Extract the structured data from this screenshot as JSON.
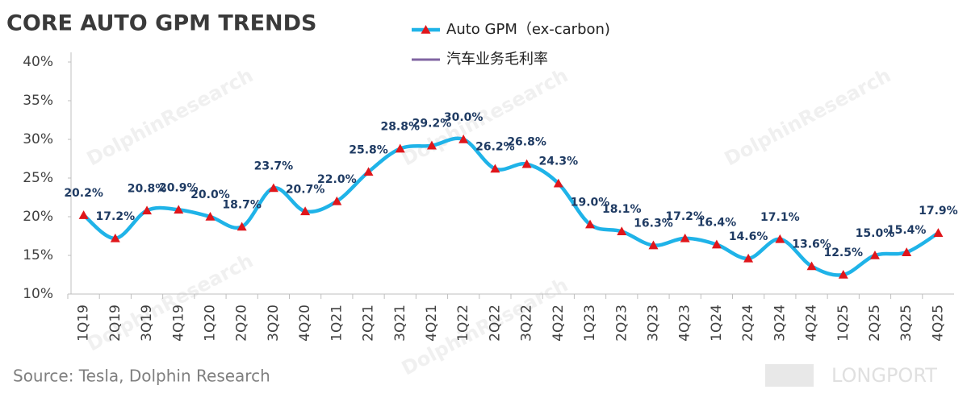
{
  "chart_data": {
    "type": "line",
    "title": "CORE AUTO GPM TRENDS",
    "source": "Source: Tesla, Dolphin Research",
    "watermark": "DolphinResearch",
    "brand": "LONGPORT",
    "categories": [
      "1Q19",
      "2Q19",
      "3Q19",
      "4Q19",
      "1Q20",
      "2Q20",
      "3Q20",
      "4Q20",
      "1Q21",
      "2Q21",
      "3Q21",
      "4Q21",
      "1Q22",
      "2Q22",
      "3Q22",
      "4Q22",
      "1Q23",
      "2Q23",
      "3Q23",
      "4Q23",
      "1Q24",
      "2Q24",
      "3Q24",
      "4Q24",
      "1Q25",
      "2Q25",
      "3Q25",
      "4Q25"
    ],
    "series": [
      {
        "name": "Auto GPM（ex-carbon)",
        "color": "#1fb3e8",
        "marker_color": "#e0161b",
        "values": [
          20.2,
          17.2,
          20.8,
          20.9,
          20.0,
          18.7,
          23.7,
          20.7,
          22.0,
          25.8,
          28.8,
          29.2,
          30.0,
          26.2,
          26.8,
          24.3,
          19.0,
          18.1,
          16.3,
          17.2,
          16.4,
          14.6,
          17.1,
          13.6,
          12.5,
          15.0,
          15.4,
          17.9
        ],
        "value_labels": [
          "20.2%",
          "17.2%",
          "20.8%",
          "20.9%",
          "20.0%",
          "18.7%",
          "23.7%",
          "20.7%",
          "22.0%",
          "25.8%",
          "28.8%",
          "29.2%",
          "30.0%",
          "26.2%",
          "26.8%",
          "24.3%",
          "19.0%",
          "18.1%",
          "16.3%",
          "17.2%",
          "16.4%",
          "14.6%",
          "17.1%",
          "13.6%",
          "12.5%",
          "15.0%",
          "15.4%",
          "17.9%"
        ]
      },
      {
        "name": "汽车业务毛利率",
        "color": "#8064a2",
        "values": [
          null,
          null,
          null,
          null,
          null,
          null,
          null,
          null,
          null,
          null,
          null,
          null,
          null,
          null,
          null,
          null,
          null,
          null,
          null,
          null,
          null,
          null,
          null,
          null,
          null,
          null,
          null,
          null
        ]
      }
    ],
    "ylim": [
      10,
      40
    ],
    "yticks": [
      {
        "value": 10,
        "label": "10%"
      },
      {
        "value": 15,
        "label": "15%"
      },
      {
        "value": 20,
        "label": "20%"
      },
      {
        "value": 25,
        "label": "25%"
      },
      {
        "value": 30,
        "label": "30%"
      },
      {
        "value": 35,
        "label": "35%"
      },
      {
        "value": 40,
        "label": "40%"
      }
    ],
    "grid": false
  }
}
